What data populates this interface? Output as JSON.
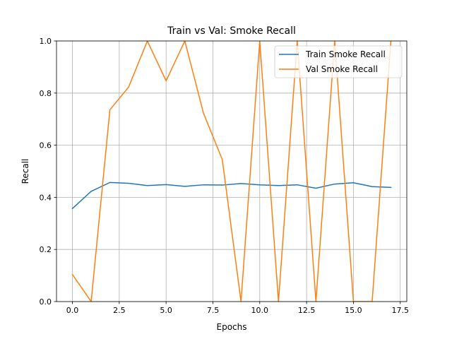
{
  "chart_data": {
    "type": "line",
    "title": "Train vs Val: Smoke Recall",
    "xlabel": "Epochs",
    "ylabel": "Recall",
    "xlim": [
      -0.85,
      17.85
    ],
    "ylim": [
      0,
      1
    ],
    "xticks": [
      0,
      2.5,
      5,
      7.5,
      10,
      12.5,
      15,
      17.5
    ],
    "xtick_labels": [
      "0.0",
      "2.5",
      "5.0",
      "7.5",
      "10.0",
      "12.5",
      "15.0",
      "17.5"
    ],
    "yticks": [
      0,
      0.2,
      0.4,
      0.6,
      0.8,
      1.0
    ],
    "ytick_labels": [
      "0.0",
      "0.2",
      "0.4",
      "0.6",
      "0.8",
      "1.0"
    ],
    "grid": true,
    "legend_position": "top-right",
    "x": [
      0,
      1,
      2,
      3,
      4,
      5,
      6,
      7,
      8,
      9,
      10,
      11,
      12,
      13,
      14,
      15,
      16,
      17
    ],
    "series": [
      {
        "name": "Train Smoke Recall",
        "color": "#1f77b4",
        "values": [
          0.357,
          0.423,
          0.457,
          0.454,
          0.445,
          0.449,
          0.442,
          0.448,
          0.447,
          0.453,
          0.448,
          0.445,
          0.448,
          0.435,
          0.451,
          0.456,
          0.441,
          0.438
        ]
      },
      {
        "name": "Val Smoke Recall",
        "color": "#ff7f0e",
        "values": [
          0.104,
          0.0,
          0.736,
          0.823,
          1.0,
          0.847,
          1.0,
          0.722,
          0.545,
          0.0,
          1.0,
          0.0,
          1.0,
          0.0,
          1.0,
          0.0,
          0.0,
          1.0
        ]
      }
    ]
  }
}
